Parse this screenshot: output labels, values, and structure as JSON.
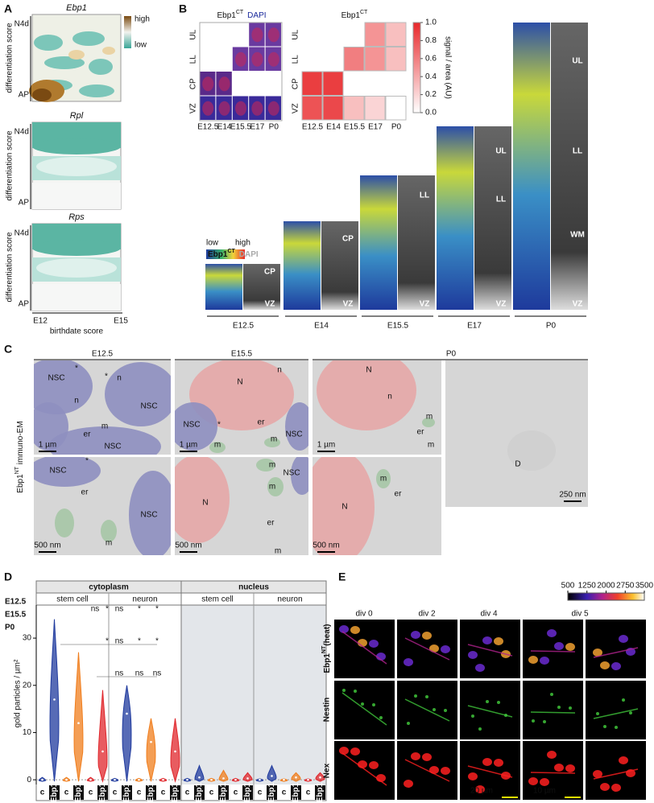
{
  "panels": {
    "a": {
      "label": "A",
      "heatmaps": [
        {
          "title": "Ebp1",
          "y_top": "N4d",
          "y_bottom": "AP",
          "y_label": "differentiation score"
        },
        {
          "title": "Rpl",
          "y_top": "N4d",
          "y_bottom": "AP",
          "y_label": "differentiation score"
        },
        {
          "title": "Rps",
          "y_top": "N4d",
          "y_bottom": "AP",
          "y_label": "differentiation score"
        }
      ],
      "legend": {
        "high": "high",
        "low": "low"
      },
      "x_start": "E12",
      "x_end": "E15",
      "x_label": "birthdate score"
    },
    "b": {
      "label": "B",
      "images_title": {
        "base": "Ebp1",
        "sup": "CT",
        "counterstain": "DAPI"
      },
      "rows": [
        "UL",
        "LL",
        "CP",
        "VZ"
      ],
      "columns": [
        "E12.5",
        "E14",
        "E15.5",
        "E17",
        "P0"
      ],
      "legend": {
        "low": "low",
        "high": "high",
        "base": "Ebp1",
        "sup": "CT",
        "counterstain": "DAPI"
      },
      "stages": [
        {
          "name": "E12.5",
          "labels": [
            "CP",
            "VZ"
          ]
        },
        {
          "name": "E14",
          "labels": [
            "CP",
            "VZ"
          ]
        },
        {
          "name": "E15.5",
          "labels": [
            "LL",
            "VZ"
          ]
        },
        {
          "name": "E17",
          "labels": [
            "UL",
            "LL",
            "VZ"
          ]
        },
        {
          "name": "P0",
          "labels": [
            "UL",
            "LL",
            "WM",
            "VZ"
          ]
        }
      ]
    },
    "c": {
      "label": "C",
      "columns": [
        "E12.5",
        "E15.5",
        "P0"
      ],
      "side_label": {
        "base": "Ebp1",
        "sup": "NT",
        "rest": " immuno-EM"
      },
      "images": [
        {
          "labels": [
            "NSC",
            "*",
            "*",
            "n",
            "n",
            "NSC",
            "m",
            "er",
            "NSC"
          ],
          "scale_bar": "1 µm"
        },
        {
          "labels": [
            "N",
            "n",
            "NSC",
            "*",
            "er",
            "m",
            "m",
            "NSC"
          ],
          "scale_bar": "1 µm"
        },
        {
          "labels": [
            "N",
            "n",
            "m",
            "er",
            "m"
          ],
          "scale_bar": "1 µm"
        },
        {
          "labels": [
            "D"
          ],
          "scale_bar": "250 nm"
        },
        {
          "labels": [
            "NSC",
            "*",
            "er",
            "NSC",
            "m"
          ],
          "scale_bar": "500 nm"
        },
        {
          "labels": [
            "N",
            "m",
            "NSC",
            "m",
            "er",
            "m"
          ],
          "scale_bar": "500 nm"
        },
        {
          "labels": [
            "N",
            "m",
            "er"
          ],
          "scale_bar": "500 nm"
        }
      ]
    },
    "e": {
      "label": "E",
      "columns": [
        "div 0",
        "div 2",
        "div 4",
        "div 5"
      ],
      "rows": [
        {
          "base": "Ebp1",
          "sup": "NT",
          "rest": "(heat)"
        },
        {
          "text": "Nestin"
        },
        {
          "text": "Nex"
        }
      ],
      "colorbar_ticks": [
        500,
        1250,
        2000,
        2750,
        3500
      ],
      "scale_bars": [
        "20 µm",
        "10 µm"
      ]
    }
  },
  "chart_data": [
    {
      "type": "heatmap",
      "title": {
        "base": "Ebp1",
        "sup": "CT"
      },
      "rows": [
        "UL",
        "LL",
        "CP",
        "VZ"
      ],
      "columns": [
        "E12.5",
        "E14",
        "E15.5",
        "E17",
        "P0"
      ],
      "values": [
        [
          null,
          null,
          null,
          0.5,
          0.3
        ],
        [
          null,
          null,
          0.6,
          0.5,
          0.3
        ],
        [
          0.9,
          0.9,
          null,
          null,
          null
        ],
        [
          0.8,
          0.85,
          0.3,
          0.2,
          0.0
        ]
      ],
      "color": "#e8282b",
      "clim": [
        0,
        1
      ],
      "cticks": [
        {
          "value": 0,
          "label": "0.0"
        },
        {
          "value": 0.2,
          "label": "0.2"
        },
        {
          "value": 0.4,
          "label": "0.4"
        },
        {
          "value": 0.6,
          "label": "0.6"
        },
        {
          "value": 0.8,
          "label": "0.8"
        },
        {
          "value": 1,
          "label": "1.0"
        }
      ],
      "clabel": "signal / area (AU)"
    },
    {
      "type": "violin",
      "label": "D",
      "y_label": "gold particles / µm²",
      "sections": [
        {
          "name": "cytoplasm",
          "groups": [
            "stem cell",
            "neuron"
          ]
        },
        {
          "name": "nucleus",
          "groups": [
            "stem cell",
            "neuron"
          ]
        }
      ],
      "categories": [
        "c",
        "Ebp1",
        "c",
        "Ebp1",
        "c",
        "Ebp1",
        "c",
        "Ebp1"
      ],
      "series": [
        {
          "name": "E12.5",
          "color": "#1f3a9e",
          "values": [
            0,
            17,
            0,
            14,
            0,
            0.5,
            0,
            0.8
          ],
          "max": [
            0.5,
            34,
            0.3,
            20,
            0.3,
            3,
            0.2,
            3
          ]
        },
        {
          "name": "E15.5",
          "color": "#f07d1c",
          "values": [
            0,
            12,
            0,
            8,
            0,
            0.3,
            0,
            0.5
          ],
          "max": [
            0.5,
            27,
            0.3,
            13,
            0.3,
            2,
            0.2,
            1.5
          ]
        },
        {
          "name": "P0",
          "color": "#e0262b",
          "values": [
            0,
            6,
            0,
            6,
            0,
            0.3,
            0,
            0.5
          ],
          "max": [
            0.5,
            19,
            0.3,
            13,
            0.3,
            1.5,
            0.2,
            1.5
          ]
        }
      ],
      "ylim": [
        -1,
        37
      ],
      "yticks": [
        0,
        10,
        20,
        30
      ],
      "annotations": [
        "ns",
        "*",
        "ns",
        "*",
        "*",
        "*",
        "ns",
        "*",
        "*",
        "ns",
        "ns",
        "ns"
      ]
    }
  ]
}
